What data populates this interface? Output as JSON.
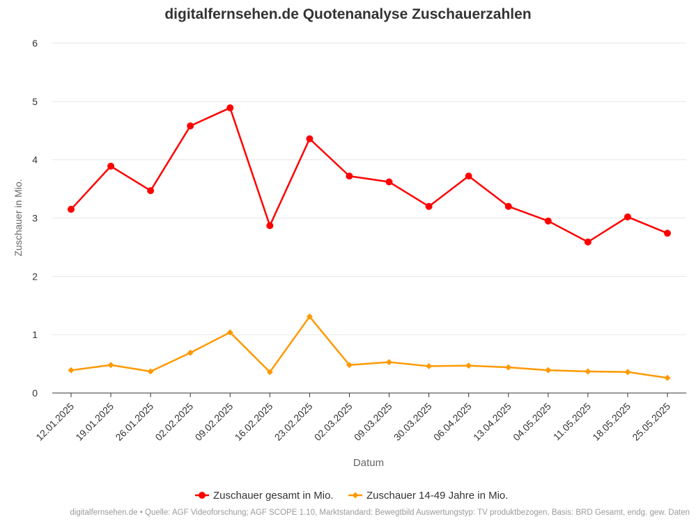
{
  "chart_data": {
    "type": "line",
    "title": "digitalfernsehen.de Quotenanalyse Zuschauerzahlen",
    "xlabel": "Datum",
    "ylabel": "Zuschauer in Mio.",
    "ylim": [
      0,
      6
    ],
    "yticks": [
      0,
      1,
      2,
      3,
      4,
      5,
      6
    ],
    "grid": true,
    "legend_position": "bottom",
    "categories": [
      "12.01.2025",
      "19.01.2025",
      "26.01.2025",
      "02.02.2025",
      "09.02.2025",
      "16.02.2025",
      "23.02.2025",
      "02.03.2025",
      "09.03.2025",
      "30.03.2025",
      "06.04.2025",
      "13.04.2025",
      "04.05.2025",
      "11.05.2025",
      "18.05.2025",
      "25.05.2025"
    ],
    "series": [
      {
        "name": "Zuschauer gesamt in Mio.",
        "color": "#ff0000",
        "marker": "circle",
        "values": [
          3.15,
          3.89,
          3.47,
          4.58,
          4.89,
          2.87,
          4.36,
          3.72,
          3.62,
          3.2,
          3.72,
          3.2,
          2.95,
          2.59,
          3.02,
          2.74
        ]
      },
      {
        "name": "Zuschauer 14-49 Jahre in Mio.",
        "color": "#ff9900",
        "marker": "diamond",
        "values": [
          0.39,
          0.48,
          0.37,
          0.69,
          1.04,
          0.36,
          1.31,
          0.48,
          0.53,
          0.46,
          0.47,
          0.44,
          0.39,
          0.37,
          0.36,
          0.26
        ]
      }
    ]
  },
  "footer": {
    "source": "digitalfernsehen.de • Quelle: AGF Videoforschung; AGF SCOPE 1.10, Marktstandard: Bewegtbild Auswertungstyp: TV produktbezogen, Basis: BRD Gesamt, endg. gew. Daten"
  }
}
